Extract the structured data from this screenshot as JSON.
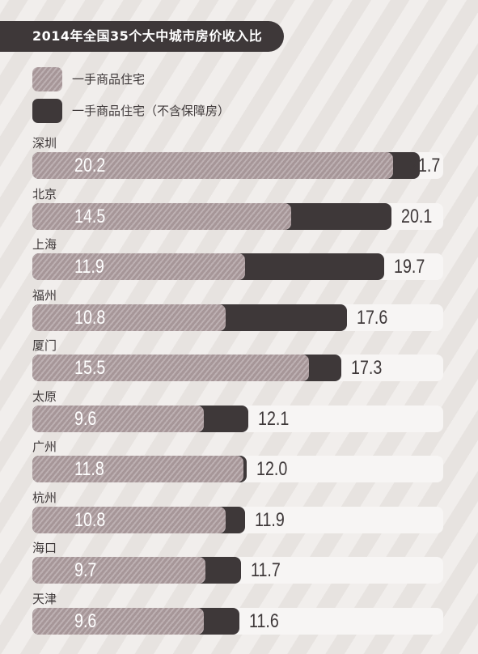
{
  "chart_data": {
    "type": "bar",
    "title": "2014年全国35个大中城市房价收入比",
    "categories": [
      "深圳",
      "北京",
      "上海",
      "福州",
      "厦门",
      "太原",
      "广州",
      "杭州",
      "海口",
      "天津"
    ],
    "series": [
      {
        "name": "一手商品住宅",
        "values": [
          20.2,
          14.5,
          11.9,
          10.8,
          15.5,
          9.6,
          11.8,
          10.8,
          9.7,
          9.6
        ]
      },
      {
        "name": "一手商品住宅（不含保障房）",
        "values": [
          21.7,
          20.1,
          19.7,
          17.6,
          17.3,
          12.1,
          12.0,
          11.9,
          11.7,
          11.6
        ]
      }
    ],
    "value_labels_main": [
      "20.2",
      "14.5",
      "11.9",
      "10.8",
      "15.5",
      "9.6",
      "11.8",
      "10.8",
      "9.7",
      "9.6"
    ],
    "value_labels_total": [
      "21.7",
      "20.1",
      "19.7",
      "17.6",
      "17.3",
      "12.1",
      "12.0",
      "11.9",
      "11.7",
      "11.6"
    ],
    "xlim": [
      0,
      23
    ],
    "grid": false,
    "legend_position": "top-left",
    "colors": {
      "series_main": "#a69698",
      "series_main_stripe": "#bdb0b2",
      "series_total": "#3e3839",
      "track": "#f7f5f4",
      "title_banner": "#3e3839"
    }
  }
}
